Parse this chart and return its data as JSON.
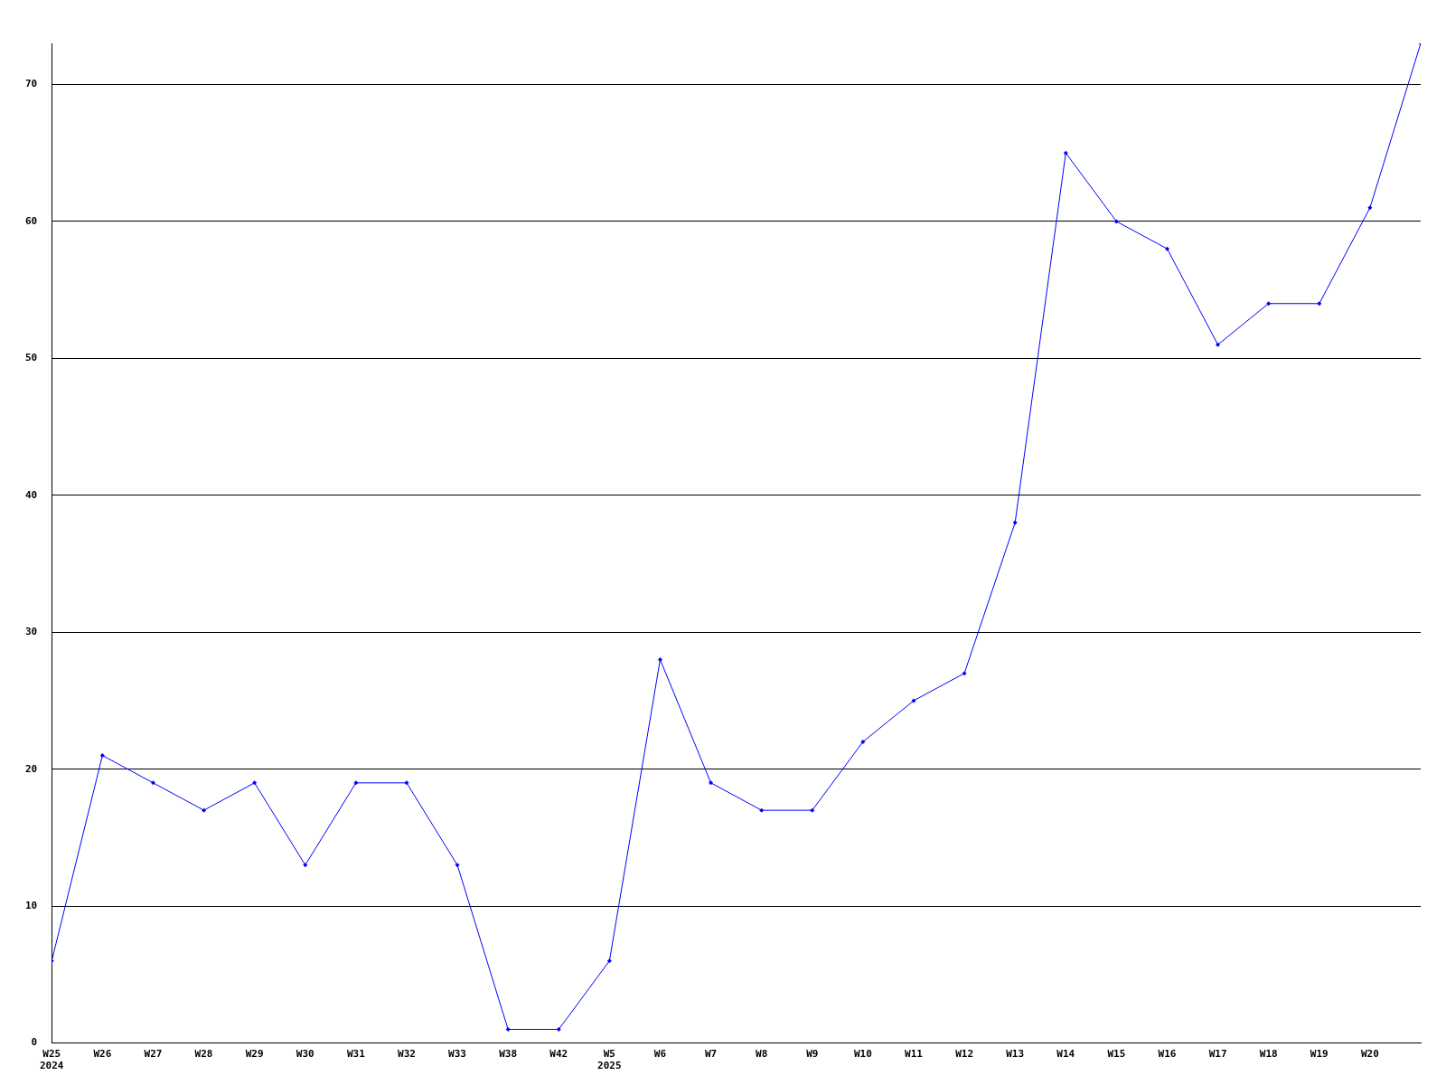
{
  "chart_data": {
    "type": "line",
    "categories": [
      "W25\n2024",
      "W26",
      "W27",
      "W28",
      "W29",
      "W30",
      "W31",
      "W32",
      "W33",
      "W38",
      "W42",
      "W5\n2025",
      "W6",
      "W7",
      "W8",
      "W9",
      "W10",
      "W11",
      "W12",
      "W13",
      "W14",
      "W15",
      "W16",
      "W17",
      "W18",
      "W19",
      "W20",
      null
    ],
    "series": [
      {
        "color": "#0000ff",
        "values": [
          6,
          21,
          19,
          17,
          19,
          13,
          19,
          19,
          13,
          1,
          1,
          6,
          28,
          19,
          17,
          17,
          22,
          25,
          27,
          38,
          65,
          60,
          58,
          51,
          54,
          54,
          61,
          73
        ]
      }
    ],
    "ylim": [
      0,
      73
    ],
    "yticks": [
      0,
      10,
      20,
      30,
      40,
      50,
      60,
      70
    ],
    "grid": "y",
    "legend": false,
    "marker": "diamond",
    "line_style": "solid"
  }
}
